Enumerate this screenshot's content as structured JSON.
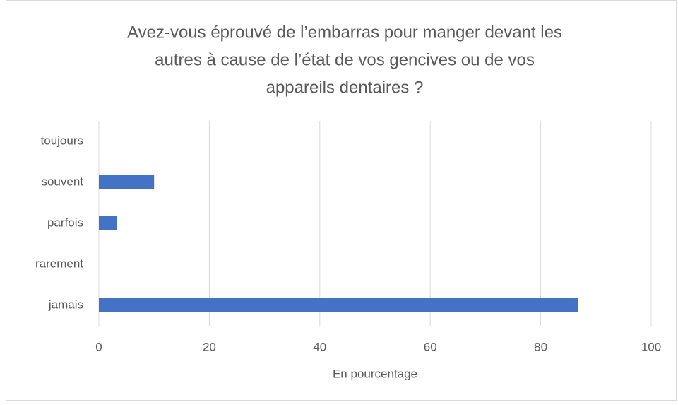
{
  "chart_data": {
    "type": "bar",
    "orientation": "horizontal",
    "title": [
      "Avez-vous éprouvé de l’embarras pour manger devant les",
      "autres à cause de l’état de vos gencives ou de vos",
      "appareils dentaires ?"
    ],
    "categories": [
      "toujours",
      "souvent",
      "parfois",
      "rarement",
      "jamais"
    ],
    "values": [
      0,
      10,
      3.3,
      0,
      86.7
    ],
    "color": "#4472c4",
    "xlabel": "En pourcentage",
    "xlim": [
      0,
      100
    ],
    "xticks": [
      0,
      20,
      40,
      60,
      80,
      100
    ],
    "grid": true
  }
}
